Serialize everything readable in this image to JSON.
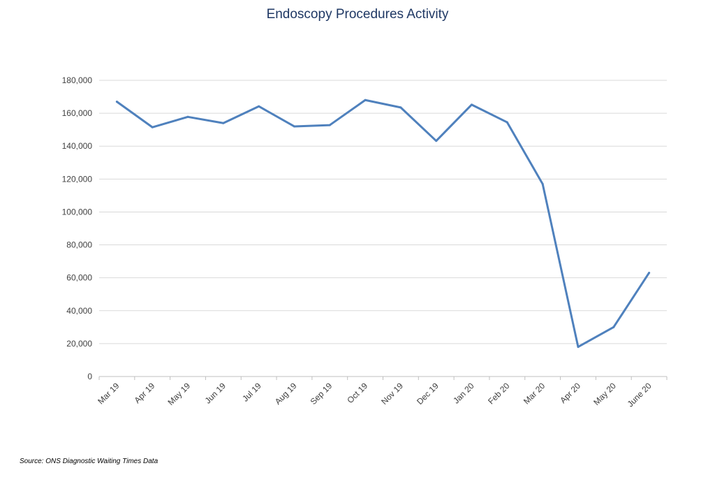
{
  "chart_data": {
    "type": "line",
    "title": "Endoscopy Procedures Activity",
    "xlabel": "",
    "ylabel": "",
    "categories": [
      "Mar 19",
      "Apr 19",
      "May 19",
      "Jun 19",
      "Jul 19",
      "Aug 19",
      "Sep 19",
      "Oct 19",
      "Nov 19",
      "Dec 19",
      "Jan 20",
      "Feb 20",
      "Mar 20",
      "Apr 20",
      "May 20",
      "June 20"
    ],
    "series": [
      {
        "values": [
          167000,
          151500,
          157800,
          154000,
          164200,
          152000,
          152800,
          168000,
          163500,
          143200,
          165200,
          154500,
          117000,
          18000,
          30000,
          63000
        ],
        "color": "#4f81bd"
      }
    ],
    "ylim": [
      0,
      180000
    ],
    "yticks": [
      0,
      20000,
      40000,
      60000,
      80000,
      100000,
      120000,
      140000,
      160000,
      180000
    ],
    "ytick_labels": [
      "0",
      "20,000",
      "40,000",
      "60,000",
      "80,000",
      "100,000",
      "120,000",
      "140,000",
      "160,000",
      "180,000"
    ],
    "grid": true,
    "legend": "none"
  },
  "source_note": "Source: ONS Diagnostic Waiting Times Data"
}
